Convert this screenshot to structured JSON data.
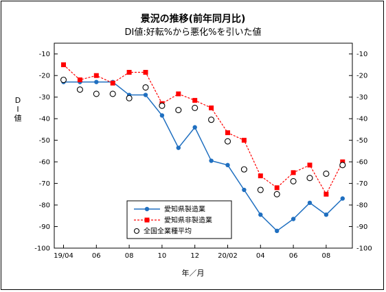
{
  "chart_data": {
    "type": "line",
    "title": "景況の推移(前年同月比)",
    "subtitle": "DI値:好転%から悪化%を引いた値",
    "ylabel": "DI値",
    "xlabel": "年／月",
    "ylim": [
      -100,
      -5
    ],
    "yticks": [
      -10,
      -20,
      -30,
      -40,
      -50,
      -60,
      -70,
      -80,
      -90,
      -100
    ],
    "xtick_labels": [
      "19/04",
      "06",
      "08",
      "10",
      "12",
      "20/02",
      "04",
      "06",
      "08"
    ],
    "grid": false,
    "legend_position": "bottom-left",
    "x": [
      "19/04",
      "19/05",
      "19/06",
      "19/07",
      "19/08",
      "19/09",
      "19/10",
      "19/11",
      "19/12",
      "20/01",
      "20/02",
      "20/03",
      "20/04",
      "20/05",
      "20/06",
      "20/07",
      "20/08",
      "20/09"
    ],
    "series": [
      {
        "name": "愛知県製造業",
        "color": "#1f6fc0",
        "style": "solid-circle",
        "values": [
          -23,
          -23,
          -23,
          -23,
          -29,
          -29,
          -38.5,
          -53.5,
          -44,
          -59.5,
          -61.5,
          -73,
          -84.5,
          -92,
          -86.5,
          -79,
          -84.5,
          -77
        ]
      },
      {
        "name": "愛知県非製造業",
        "color": "#ff0000",
        "style": "dashed-square",
        "values": [
          -15,
          -22,
          -20,
          -23.5,
          -18.5,
          -18.5,
          -33,
          -28.5,
          -31.5,
          -35,
          -46.5,
          -50,
          -66.5,
          -72,
          -65,
          -61.5,
          -75,
          -60
        ]
      },
      {
        "name": "全国全業種平均",
        "color": "#000000",
        "style": "open-circle-marker",
        "values": [
          -22,
          -26.5,
          -28.5,
          -28.5,
          -30.5,
          -25.5,
          -34,
          -36,
          -35,
          -40.5,
          -50.5,
          -63.5,
          -73,
          -75,
          -69,
          -67.5,
          -65.5,
          -61.5
        ]
      }
    ]
  }
}
